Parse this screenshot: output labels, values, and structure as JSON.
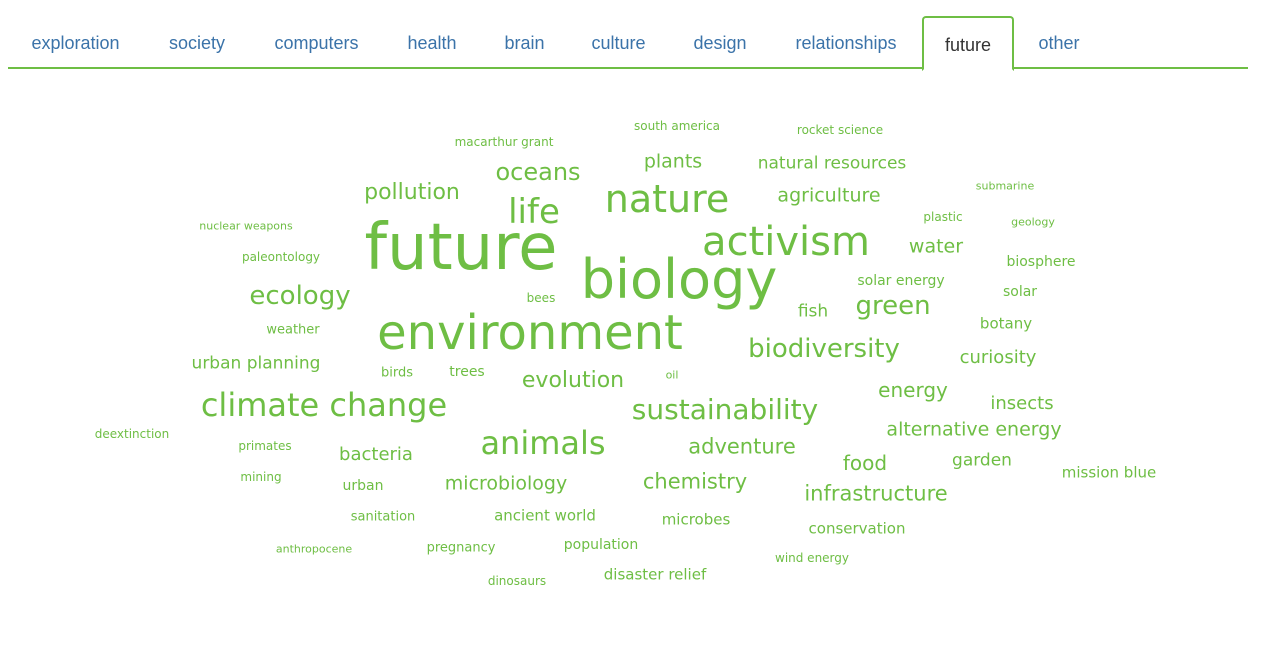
{
  "tabs": {
    "items": [
      {
        "id": "exploration",
        "label": "exploration"
      },
      {
        "id": "society",
        "label": "society"
      },
      {
        "id": "computers",
        "label": "computers"
      },
      {
        "id": "health",
        "label": "health"
      },
      {
        "id": "brain",
        "label": "brain"
      },
      {
        "id": "culture",
        "label": "culture"
      },
      {
        "id": "design",
        "label": "design"
      },
      {
        "id": "relationships",
        "label": "relationships"
      },
      {
        "id": "future",
        "label": "future",
        "active": true
      },
      {
        "id": "other",
        "label": "other"
      }
    ]
  },
  "theme": {
    "accent": "#6ebe44",
    "tab_text": "#3b73a9",
    "active_tab_text": "#333333"
  },
  "cloud": {
    "words": [
      "future",
      "biology",
      "environment",
      "activism",
      "nature",
      "life",
      "oceans",
      "pollution",
      "plants",
      "natural resources",
      "agriculture",
      "south america",
      "rocket science",
      "macarthur grant",
      "submarine",
      "plastic",
      "geology",
      "nuclear weapons",
      "paleontology",
      "water",
      "biosphere",
      "solar energy",
      "solar",
      "ecology",
      "bees",
      "fish",
      "green",
      "weather",
      "botany",
      "biodiversity",
      "curiosity",
      "urban planning",
      "birds",
      "trees",
      "oil",
      "evolution",
      "climate change",
      "sustainability",
      "energy",
      "insects",
      "deextinction",
      "primates",
      "animals",
      "alternative energy",
      "adventure",
      "bacteria",
      "food",
      "garden",
      "mission blue",
      "mining",
      "urban",
      "microbiology",
      "chemistry",
      "infrastructure",
      "sanitation",
      "ancient world",
      "microbes",
      "conservation",
      "anthropocene",
      "pregnancy",
      "population",
      "wind energy",
      "disaster relief",
      "dinosaurs"
    ]
  }
}
